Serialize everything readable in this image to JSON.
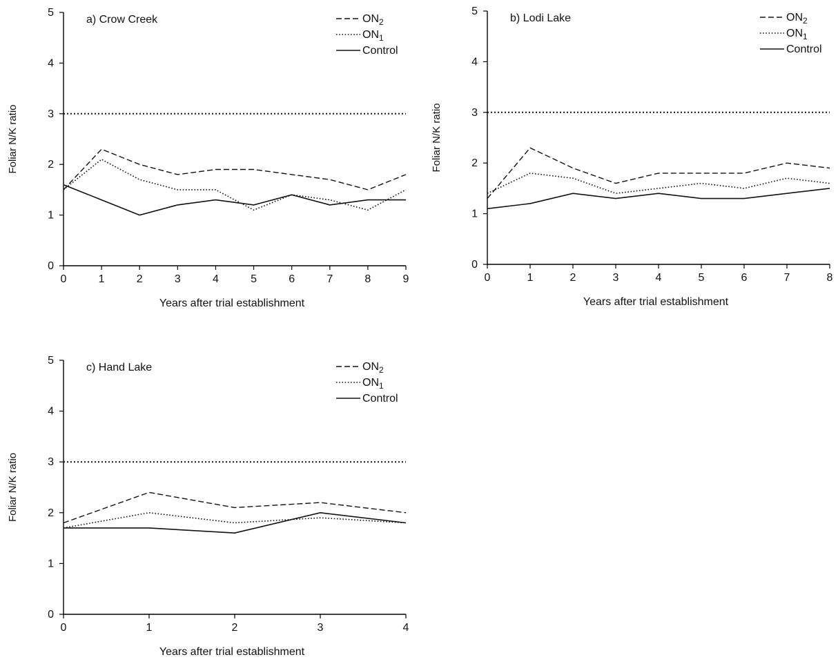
{
  "chart_data": [
    {
      "type": "line",
      "title": "a) Crow Creek",
      "xlabel": "Years after trial establishment",
      "ylabel": "Foliar N/K ratio",
      "x": [
        0,
        1,
        2,
        3,
        4,
        5,
        6,
        7,
        8,
        9
      ],
      "xlim": [
        0,
        9
      ],
      "ylim": [
        0,
        5
      ],
      "yticks": [
        0,
        1,
        2,
        3,
        4,
        5
      ],
      "reference_line": 3.0,
      "legend_position": "top-right",
      "series": [
        {
          "name": "ON2",
          "label_main": "ON",
          "label_sub": "2",
          "style": "dashed",
          "values": [
            1.5,
            2.3,
            2.0,
            1.8,
            1.9,
            1.9,
            1.8,
            1.7,
            1.5,
            1.8
          ]
        },
        {
          "name": "ON1",
          "label_main": "ON",
          "label_sub": "1",
          "style": "dotted",
          "values": [
            1.5,
            2.1,
            1.7,
            1.5,
            1.5,
            1.1,
            1.4,
            1.3,
            1.1,
            1.5
          ]
        },
        {
          "name": "Control",
          "label_main": "Control",
          "label_sub": "",
          "style": "solid",
          "values": [
            1.6,
            1.3,
            1.0,
            1.2,
            1.3,
            1.2,
            1.4,
            1.2,
            1.3,
            1.3
          ]
        }
      ]
    },
    {
      "type": "line",
      "title": "b) Lodi Lake",
      "xlabel": "Years after trial establishment",
      "ylabel": "Foliar N/K ratio",
      "x": [
        0,
        1,
        2,
        3,
        4,
        5,
        6,
        7,
        8
      ],
      "xlim": [
        0,
        8
      ],
      "ylim": [
        0,
        5
      ],
      "yticks": [
        0,
        1,
        2,
        3,
        4,
        5
      ],
      "reference_line": 3.0,
      "legend_position": "top-right",
      "series": [
        {
          "name": "ON2",
          "label_main": "ON",
          "label_sub": "2",
          "style": "dashed",
          "values": [
            1.3,
            2.3,
            1.9,
            1.6,
            1.8,
            1.8,
            1.8,
            2.0,
            1.9
          ]
        },
        {
          "name": "ON1",
          "label_main": "ON",
          "label_sub": "1",
          "style": "dotted",
          "values": [
            1.4,
            1.8,
            1.7,
            1.4,
            1.5,
            1.6,
            1.5,
            1.7,
            1.6
          ]
        },
        {
          "name": "Control",
          "label_main": "Control",
          "label_sub": "",
          "style": "solid",
          "values": [
            1.1,
            1.2,
            1.4,
            1.3,
            1.4,
            1.3,
            1.3,
            1.4,
            1.5
          ]
        }
      ]
    },
    {
      "type": "line",
      "title": "c) Hand Lake",
      "xlabel": "Years after trial establishment",
      "ylabel": "Foliar N/K ratio",
      "x": [
        0,
        1,
        2,
        3,
        4
      ],
      "xlim": [
        0,
        4
      ],
      "ylim": [
        0,
        5
      ],
      "yticks": [
        0,
        1,
        2,
        3,
        4,
        5
      ],
      "reference_line": 3.0,
      "legend_position": "top-right",
      "series": [
        {
          "name": "ON2",
          "label_main": "ON",
          "label_sub": "2",
          "style": "dashed",
          "values": [
            1.8,
            2.4,
            2.1,
            2.2,
            2.0
          ]
        },
        {
          "name": "ON1",
          "label_main": "ON",
          "label_sub": "1",
          "style": "dotted",
          "values": [
            1.7,
            2.0,
            1.8,
            1.9,
            1.8
          ]
        },
        {
          "name": "Control",
          "label_main": "Control",
          "label_sub": "",
          "style": "solid",
          "values": [
            1.7,
            1.7,
            1.6,
            2.0,
            1.8
          ]
        }
      ]
    }
  ]
}
